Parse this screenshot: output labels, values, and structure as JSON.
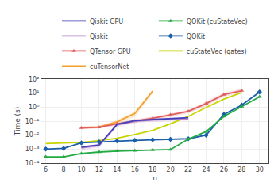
{
  "chart_data": {
    "type": "line",
    "xlabel": "n",
    "ylabel": "Time (s)",
    "log": "y",
    "grid": true,
    "legend": "top",
    "xlim": [
      5.5,
      31.0
    ],
    "xticks": [
      6,
      8,
      10,
      12,
      14,
      16,
      18,
      20,
      22,
      24,
      26,
      28,
      30
    ],
    "ylim": [
      0.0001,
      100
    ],
    "yticks": [
      {
        "value": 0.0001,
        "label": "10⁻⁴"
      },
      {
        "value": 0.001,
        "label": "10⁻³"
      },
      {
        "value": 0.01,
        "label": "10⁻²"
      },
      {
        "value": 0.1,
        "label": "10⁻¹"
      },
      {
        "value": 1,
        "label": "10⁰"
      },
      {
        "value": 10,
        "label": "10¹"
      },
      {
        "value": 100,
        "label": "10²"
      }
    ],
    "series": [
      {
        "name": "cuTensorNet",
        "color": "#f5a030",
        "x": [
          10,
          12,
          14,
          16,
          18
        ],
        "values": [
          0.035,
          0.038,
          0.09,
          0.35,
          14.0
        ],
        "band_upper": [
          0.042,
          0.044,
          0.12,
          0.5,
          18.0
        ],
        "band_lower": [
          0.028,
          0.032,
          0.065,
          0.2,
          10.0
        ]
      },
      {
        "name": "cuStateVec (gates)",
        "color": "#c8d400",
        "x": [
          6,
          8,
          10,
          12,
          14,
          16,
          18,
          20,
          22,
          24,
          26,
          28
        ],
        "values": [
          0.0025,
          0.0027,
          0.003,
          0.004,
          0.006,
          0.011,
          0.022,
          0.065,
          0.22,
          0.95,
          3.8,
          11.0
        ]
      },
      {
        "name": "QTensor GPU",
        "color": "#e06060",
        "marker": "triangle-up",
        "x": [
          10,
          12,
          14,
          16,
          18,
          20,
          22,
          24,
          26,
          28
        ],
        "values": [
          0.033,
          0.037,
          0.065,
          0.1,
          0.16,
          0.28,
          0.5,
          1.8,
          8.0,
          15.0
        ],
        "band_upper": [
          0.04,
          0.044,
          0.085,
          0.13,
          0.21,
          0.36,
          0.65,
          2.5,
          11.0,
          20.0
        ],
        "band_lower": [
          0.027,
          0.03,
          0.048,
          0.077,
          0.12,
          0.2,
          0.37,
          1.2,
          5.5,
          11.0
        ]
      },
      {
        "name": "QOKit",
        "color": "#1a5fa8",
        "marker": "diamond",
        "x": [
          6,
          8,
          10,
          12,
          14,
          16,
          18,
          20,
          22,
          24,
          26,
          28,
          30
        ],
        "values": [
          0.001,
          0.00112,
          0.0028,
          0.0033,
          0.0038,
          0.0042,
          0.0046,
          0.005,
          0.0055,
          0.01,
          0.3,
          1.4,
          12.0
        ]
      },
      {
        "name": "Qiskit",
        "color": "#bb88cc",
        "x": [
          10,
          12,
          14,
          16,
          18,
          20,
          22
        ],
        "values": [
          0.0012,
          0.0018,
          0.055,
          0.1,
          0.12,
          0.13,
          0.14
        ],
        "band_upper": [
          0.0016,
          0.0024,
          0.075,
          0.14,
          0.16,
          0.17,
          0.19
        ],
        "band_lower": [
          0.0008,
          0.0013,
          0.038,
          0.072,
          0.088,
          0.095,
          0.11
        ]
      },
      {
        "name": "QOKit (cuStateVec)",
        "color": "#22aa44",
        "marker": "triangle-up",
        "x": [
          6,
          8,
          10,
          12,
          14,
          16,
          18,
          20,
          22,
          24,
          26,
          28,
          30
        ],
        "values": [
          0.00028,
          0.00028,
          0.00048,
          0.00062,
          0.00072,
          0.00078,
          0.00088,
          0.00092,
          0.0052,
          0.018,
          0.22,
          1.1,
          5.5
        ]
      },
      {
        "name": "Qiskit GPU",
        "color": "#4040bb",
        "x": [
          10,
          12,
          14,
          16,
          18,
          20,
          22
        ],
        "values": [
          0.0014,
          0.002,
          0.058,
          0.11,
          0.13,
          0.155,
          0.175
        ]
      }
    ]
  }
}
